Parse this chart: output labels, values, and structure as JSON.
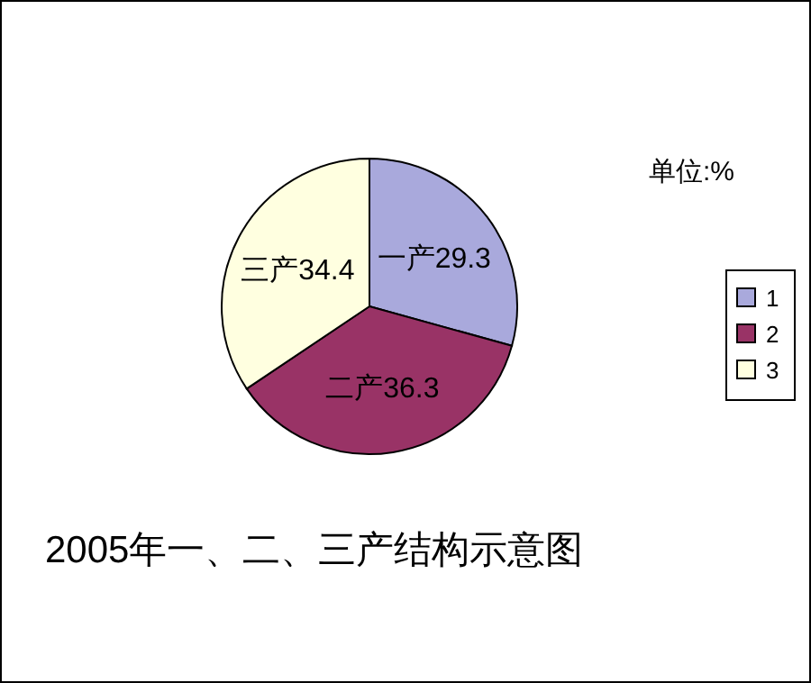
{
  "chart_data": {
    "type": "pie",
    "title": "2005年一、二、三产结构示意图",
    "annotations": [
      "单位:%"
    ],
    "categories": [
      "1",
      "2",
      "3"
    ],
    "values": [
      29.3,
      36.3,
      34.4
    ],
    "value_labels": [
      "一产29.3",
      "二产36.3",
      "三产34.4"
    ],
    "colors": [
      "#a9a9dc",
      "#993366",
      "#ffffe0"
    ],
    "legend": "right"
  }
}
